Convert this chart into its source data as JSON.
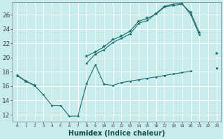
{
  "title": "",
  "xlabel": "Humidex (Indice chaleur)",
  "background_color": "#c8ecec",
  "grid_color": "#b0d8d8",
  "line_color": "#1a6b6b",
  "xlim": [
    -0.5,
    23.5
  ],
  "ylim": [
    11.0,
    27.8
  ],
  "yticks": [
    12,
    14,
    16,
    18,
    20,
    22,
    24,
    26
  ],
  "xticks": [
    0,
    1,
    2,
    3,
    4,
    5,
    6,
    7,
    8,
    9,
    10,
    11,
    12,
    13,
    14,
    15,
    16,
    17,
    18,
    19,
    20,
    21,
    22,
    23
  ],
  "line1_y": [
    17.5,
    16.7,
    16.1,
    14.8,
    13.3,
    13.3,
    11.8,
    11.8,
    16.4,
    19.0,
    16.3,
    16.1,
    16.5,
    16.7,
    16.9,
    17.1,
    17.3,
    17.5,
    17.7,
    17.9,
    18.1,
    null,
    null,
    18.5
  ],
  "line2_y": [
    17.5,
    16.7,
    16.1,
    null,
    null,
    null,
    null,
    null,
    20.2,
    20.8,
    21.5,
    22.5,
    23.0,
    23.7,
    25.1,
    25.5,
    26.1,
    27.1,
    27.3,
    27.5,
    26.3,
    23.5,
    null,
    20.6
  ],
  "line3_y": [
    17.5,
    16.7,
    16.1,
    null,
    null,
    null,
    null,
    null,
    19.2,
    20.5,
    21.1,
    22.1,
    22.7,
    23.3,
    24.8,
    25.2,
    26.2,
    27.2,
    27.5,
    27.6,
    26.0,
    23.2,
    null,
    18.5
  ]
}
